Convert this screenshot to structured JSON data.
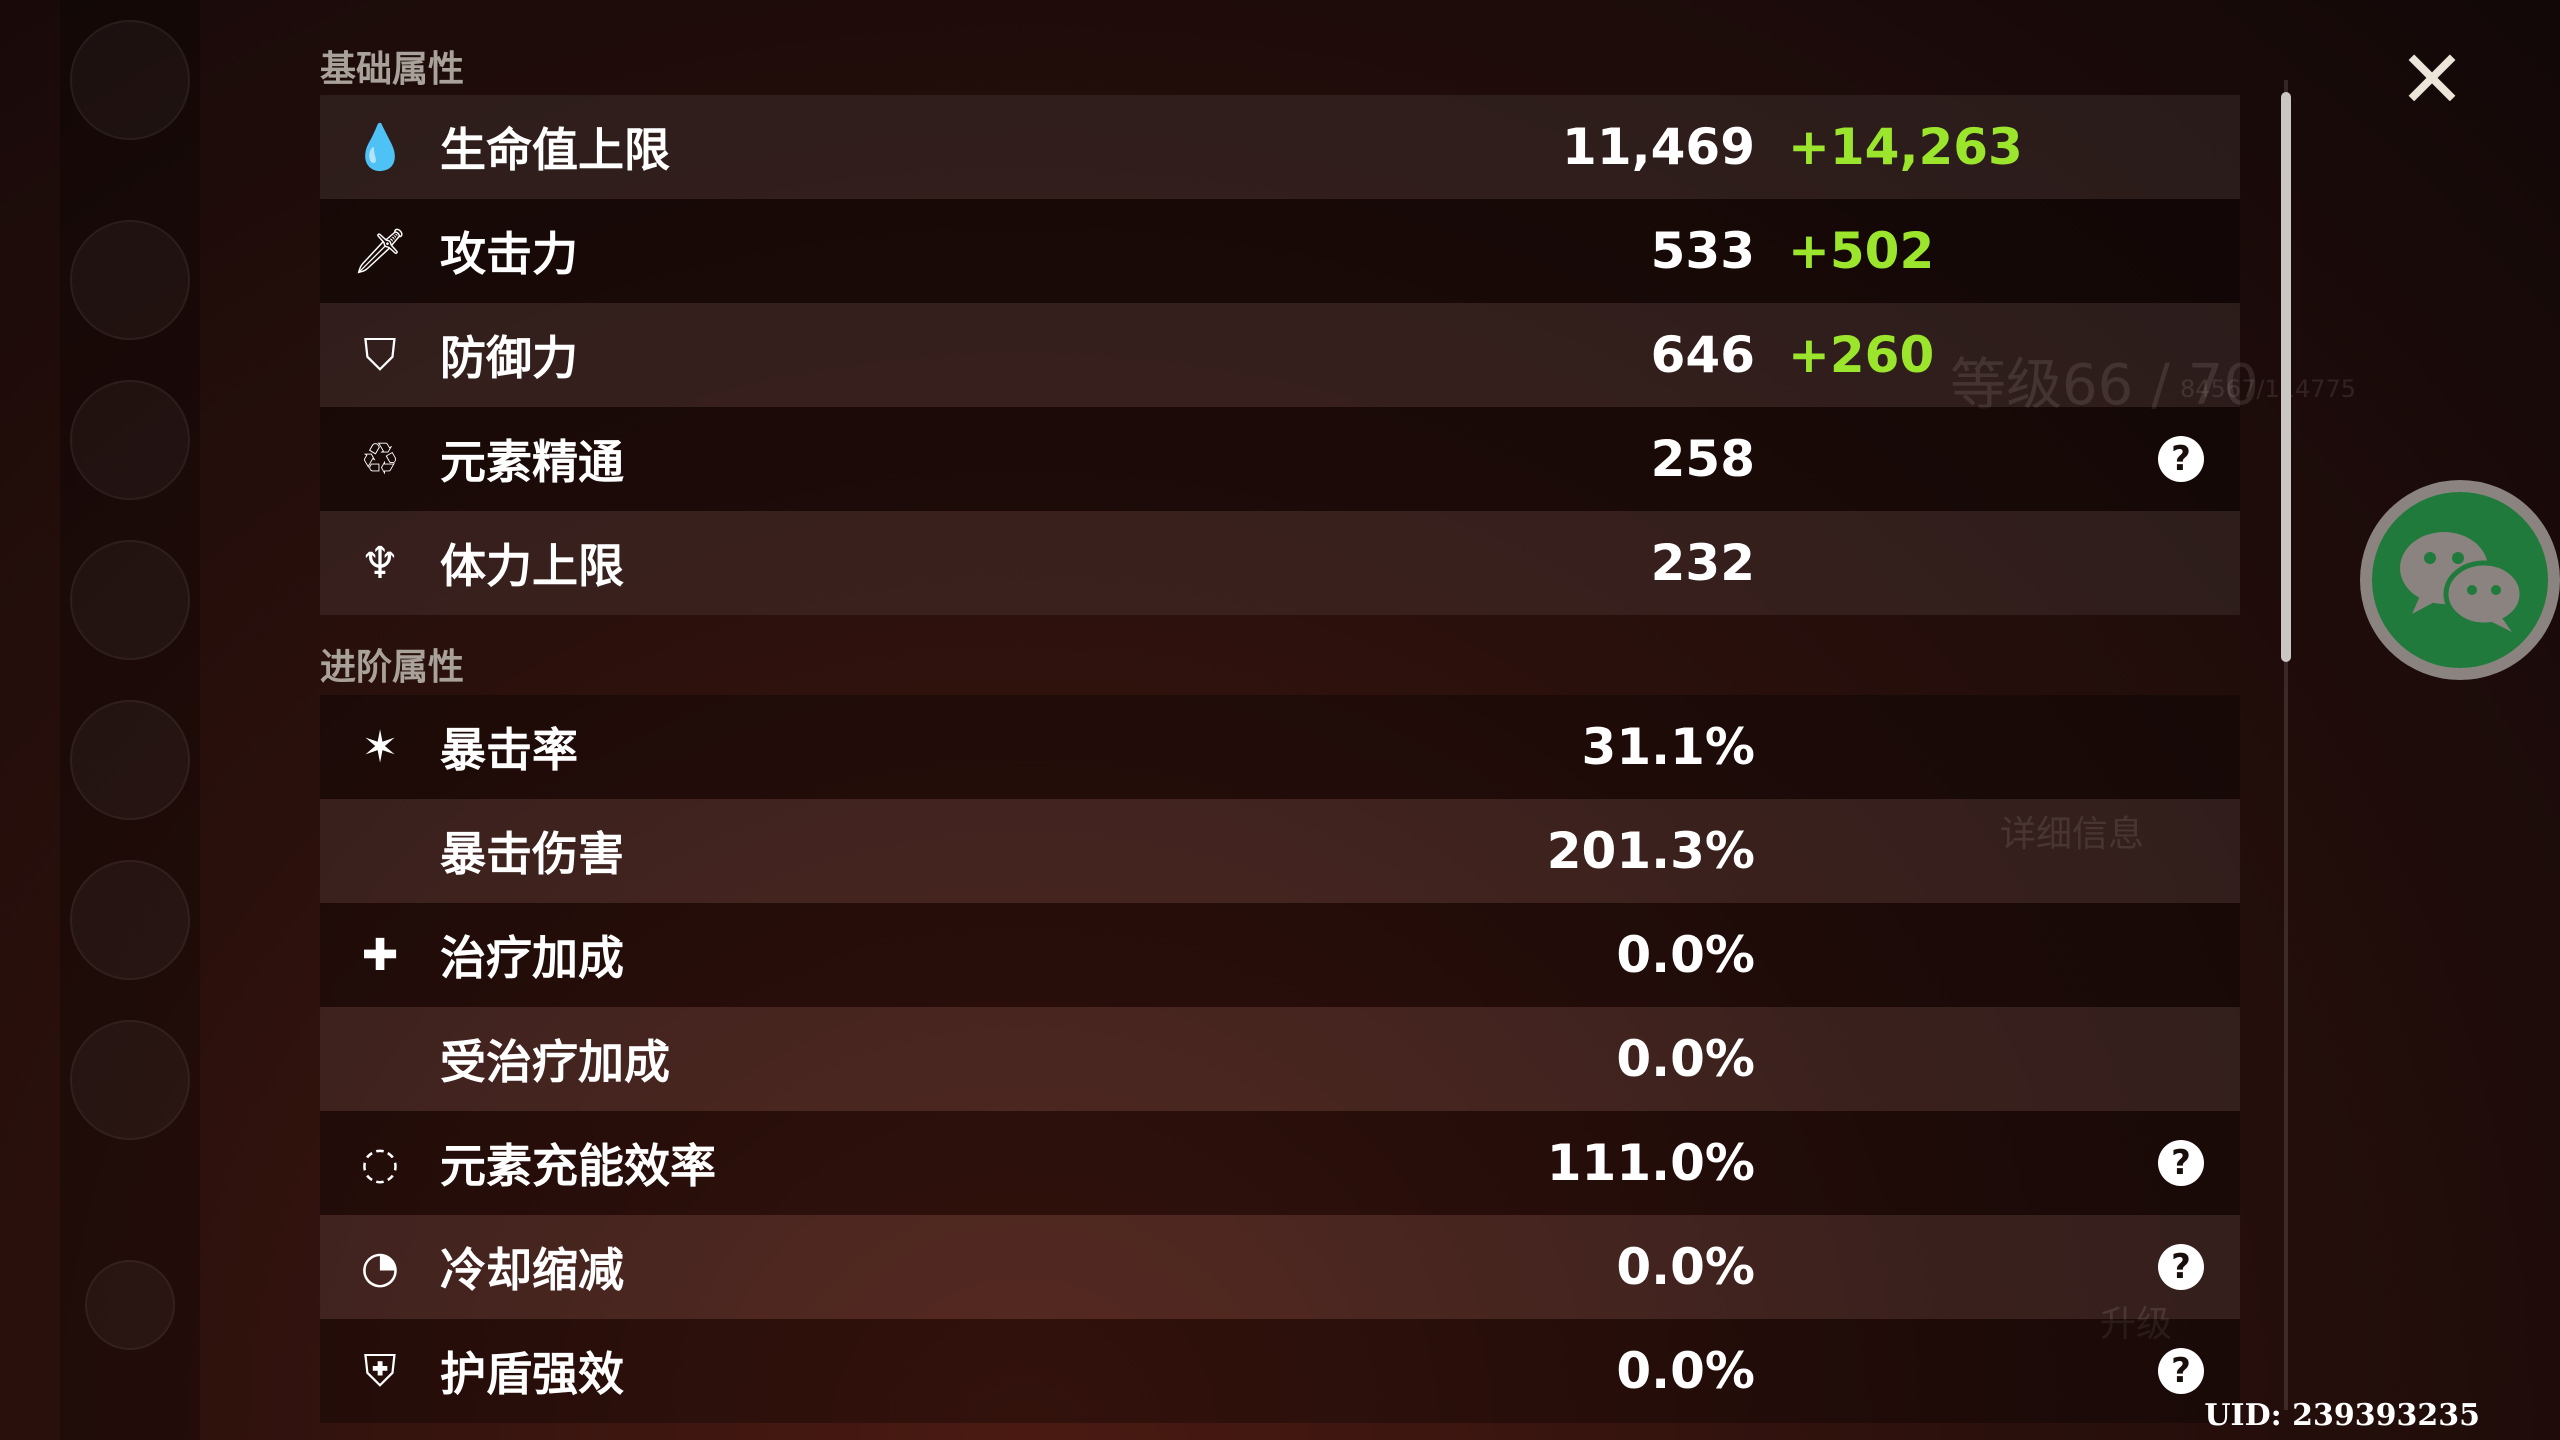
{
  "sections": {
    "basic": "基础属性",
    "advanced": "进阶属性"
  },
  "basic_stats": [
    {
      "icon": "hp-drop-icon",
      "label": "生命值上限",
      "value": "11,469",
      "bonus": "+14,263"
    },
    {
      "icon": "sword-icon",
      "label": "攻击力",
      "value": "533",
      "bonus": "+502"
    },
    {
      "icon": "shield-icon",
      "label": "防御力",
      "value": "646",
      "bonus": "+260"
    },
    {
      "icon": "elemental-mastery-icon",
      "label": "元素精通",
      "value": "258",
      "help": "?"
    },
    {
      "icon": "stamina-icon",
      "label": "体力上限",
      "value": "232"
    }
  ],
  "advanced_stats": [
    {
      "icon": "crit-rate-icon",
      "label": "暴击率",
      "value": "31.1%"
    },
    {
      "label": "暴击伤害",
      "value": "201.3%"
    },
    {
      "icon": "healing-cross-icon",
      "label": "治疗加成",
      "value": "0.0%"
    },
    {
      "label": "受治疗加成",
      "value": "0.0%"
    },
    {
      "icon": "energy-recharge-icon",
      "label": "元素充能效率",
      "value": "111.0%",
      "help": "?"
    },
    {
      "icon": "cooldown-icon",
      "label": "冷却缩减",
      "value": "0.0%",
      "help": "?"
    },
    {
      "icon": "shield-strength-icon",
      "label": "护盾强效",
      "value": "0.0%",
      "help": "?"
    }
  ],
  "close": "✕",
  "uid": "UID: 239393235",
  "background": {
    "level": "等级66 / 70",
    "exp": "84567/114775",
    "details": "详细信息",
    "upgrade": "升级"
  },
  "colors": {
    "bonus": "#9be52c",
    "wechat": "#1f7a3b"
  }
}
